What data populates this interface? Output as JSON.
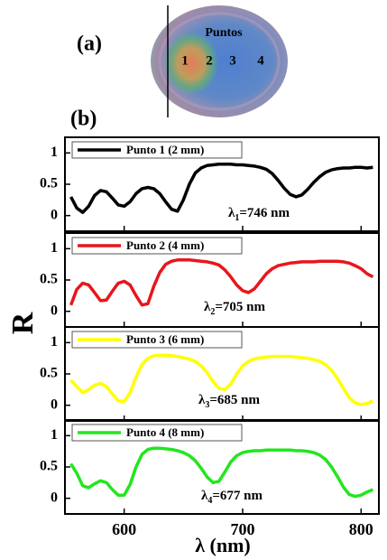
{
  "figure": {
    "panel_a": {
      "label": "(a)",
      "title": "Puntos",
      "points": [
        "1",
        "2",
        "3",
        "4"
      ]
    },
    "panel_b_label": "(b)",
    "y_label": "R",
    "x_label": "λ (nm)"
  },
  "chart_data": [
    {
      "type": "line",
      "xlim": [
        550,
        815
      ],
      "ylim": [
        -0.25,
        1.25
      ],
      "yticks": [
        0,
        0.5,
        1
      ],
      "x": [
        555,
        560,
        565,
        570,
        575,
        580,
        585,
        590,
        595,
        600,
        605,
        610,
        615,
        620,
        625,
        630,
        635,
        640,
        645,
        650,
        655,
        660,
        665,
        670,
        675,
        680,
        685,
        690,
        695,
        700,
        705,
        710,
        715,
        720,
        725,
        730,
        735,
        740,
        745,
        750,
        755,
        760,
        765,
        770,
        775,
        780,
        785,
        790,
        795,
        800,
        805,
        810
      ],
      "series": [
        {
          "name": "Punto 1 (2 mm)",
          "color": "#000000",
          "values": [
            0.3,
            0.12,
            0.05,
            0.15,
            0.32,
            0.4,
            0.38,
            0.28,
            0.17,
            0.15,
            0.22,
            0.35,
            0.43,
            0.45,
            0.43,
            0.35,
            0.22,
            0.1,
            0.07,
            0.25,
            0.5,
            0.68,
            0.76,
            0.8,
            0.81,
            0.82,
            0.82,
            0.82,
            0.81,
            0.81,
            0.8,
            0.79,
            0.77,
            0.74,
            0.67,
            0.56,
            0.44,
            0.34,
            0.3,
            0.33,
            0.42,
            0.53,
            0.62,
            0.69,
            0.73,
            0.75,
            0.76,
            0.76,
            0.77,
            0.77,
            0.76,
            0.77
          ]
        }
      ],
      "annotation": {
        "symbol": "λ",
        "subscript": "1",
        "text": "=746 nm"
      }
    },
    {
      "type": "line",
      "xlim": [
        550,
        815
      ],
      "ylim": [
        -0.25,
        1.25
      ],
      "yticks": [
        0,
        0.5,
        1
      ],
      "x": [
        555,
        560,
        565,
        570,
        575,
        580,
        585,
        590,
        595,
        600,
        605,
        610,
        615,
        620,
        625,
        630,
        635,
        640,
        645,
        650,
        655,
        660,
        665,
        670,
        675,
        680,
        685,
        690,
        695,
        700,
        705,
        710,
        715,
        720,
        725,
        730,
        735,
        740,
        745,
        750,
        755,
        760,
        765,
        770,
        775,
        780,
        785,
        790,
        795,
        800,
        805,
        810
      ],
      "series": [
        {
          "name": "Punto 2 (4 mm)",
          "color": "#e8161b",
          "values": [
            0.1,
            0.35,
            0.45,
            0.42,
            0.3,
            0.17,
            0.18,
            0.32,
            0.45,
            0.48,
            0.42,
            0.25,
            0.1,
            0.12,
            0.4,
            0.62,
            0.75,
            0.8,
            0.82,
            0.82,
            0.82,
            0.81,
            0.8,
            0.79,
            0.77,
            0.74,
            0.66,
            0.55,
            0.42,
            0.33,
            0.3,
            0.36,
            0.48,
            0.6,
            0.68,
            0.73,
            0.75,
            0.77,
            0.78,
            0.79,
            0.79,
            0.79,
            0.8,
            0.8,
            0.8,
            0.8,
            0.79,
            0.77,
            0.73,
            0.68,
            0.6,
            0.55
          ]
        }
      ],
      "annotation": {
        "symbol": "λ",
        "subscript": "2",
        "text": "=705 nm"
      }
    },
    {
      "type": "line",
      "xlim": [
        550,
        815
      ],
      "ylim": [
        -0.25,
        1.25
      ],
      "yticks": [
        0,
        0.5,
        1
      ],
      "x": [
        555,
        560,
        565,
        570,
        575,
        580,
        585,
        590,
        595,
        600,
        605,
        610,
        615,
        620,
        625,
        630,
        635,
        640,
        645,
        650,
        655,
        660,
        665,
        670,
        675,
        680,
        685,
        690,
        695,
        700,
        705,
        710,
        715,
        720,
        725,
        730,
        735,
        740,
        745,
        750,
        755,
        760,
        765,
        770,
        775,
        780,
        785,
        790,
        795,
        800,
        805,
        810
      ],
      "series": [
        {
          "name": "Punto 3 (6 mm)",
          "color": "#ffff00",
          "values": [
            0.4,
            0.3,
            0.2,
            0.25,
            0.32,
            0.35,
            0.3,
            0.18,
            0.07,
            0.06,
            0.2,
            0.45,
            0.65,
            0.75,
            0.79,
            0.8,
            0.8,
            0.79,
            0.78,
            0.76,
            0.74,
            0.7,
            0.63,
            0.52,
            0.38,
            0.27,
            0.25,
            0.34,
            0.5,
            0.63,
            0.7,
            0.74,
            0.76,
            0.77,
            0.78,
            0.78,
            0.78,
            0.78,
            0.77,
            0.76,
            0.75,
            0.73,
            0.7,
            0.65,
            0.56,
            0.43,
            0.27,
            0.12,
            0.04,
            0.01,
            0.03,
            0.07
          ]
        }
      ],
      "annotation": {
        "symbol": "λ",
        "subscript": "3",
        "text": "=685 nm"
      }
    },
    {
      "type": "line",
      "xlim": [
        550,
        815
      ],
      "ylim": [
        -0.25,
        1.25
      ],
      "yticks": [
        0,
        0.5,
        1
      ],
      "xticks": [
        600,
        700,
        800
      ],
      "x": [
        555,
        560,
        565,
        570,
        575,
        580,
        585,
        590,
        595,
        600,
        605,
        610,
        615,
        620,
        625,
        630,
        635,
        640,
        645,
        650,
        655,
        660,
        665,
        670,
        675,
        680,
        685,
        690,
        695,
        700,
        705,
        710,
        715,
        720,
        725,
        730,
        735,
        740,
        745,
        750,
        755,
        760,
        765,
        770,
        775,
        780,
        785,
        790,
        795,
        800,
        805,
        810
      ],
      "series": [
        {
          "name": "Punto 4 (8 mm)",
          "color": "#22e61e",
          "values": [
            0.55,
            0.4,
            0.2,
            0.17,
            0.23,
            0.28,
            0.25,
            0.14,
            0.05,
            0.05,
            0.22,
            0.5,
            0.7,
            0.78,
            0.8,
            0.8,
            0.79,
            0.78,
            0.76,
            0.73,
            0.68,
            0.6,
            0.48,
            0.34,
            0.25,
            0.27,
            0.42,
            0.58,
            0.68,
            0.73,
            0.75,
            0.76,
            0.76,
            0.77,
            0.77,
            0.77,
            0.77,
            0.77,
            0.76,
            0.76,
            0.75,
            0.73,
            0.69,
            0.62,
            0.5,
            0.35,
            0.18,
            0.06,
            0.03,
            0.05,
            0.1,
            0.14
          ]
        }
      ],
      "annotation": {
        "symbol": "λ",
        "subscript": "4",
        "text": "=677 nm"
      }
    }
  ]
}
